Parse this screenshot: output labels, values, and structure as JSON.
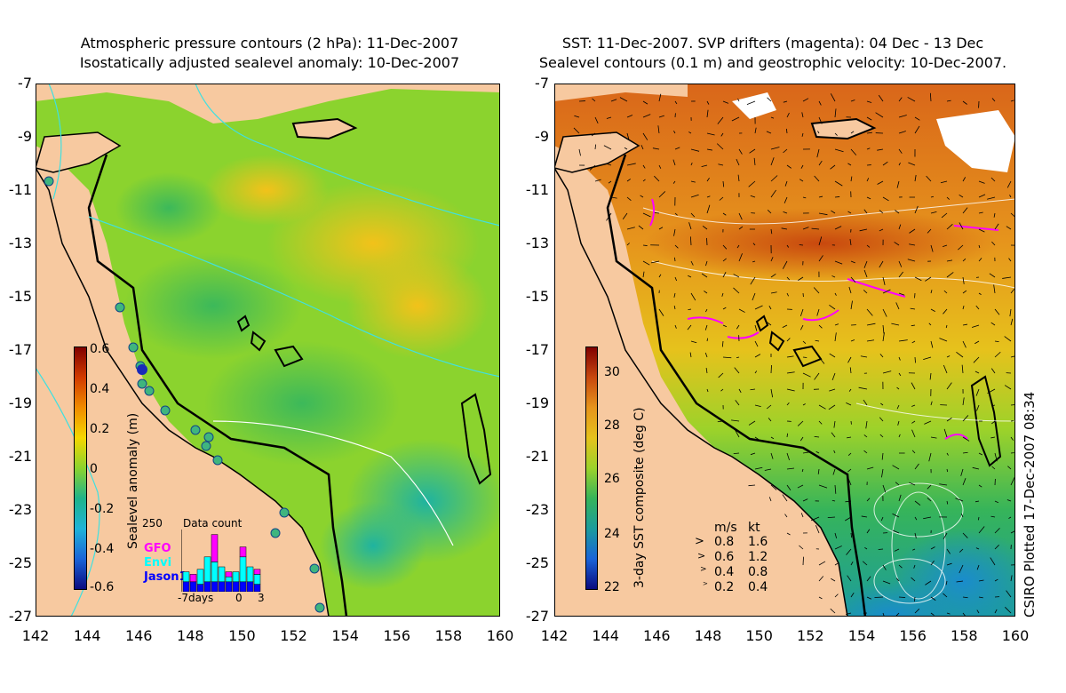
{
  "left_panel": {
    "title_line1": "Atmospheric pressure contours (2 hPa): 11-Dec-2007",
    "title_line2": "Isostatically adjusted sealevel anomaly: 10-Dec-2007",
    "colorbar": {
      "label": "Sealevel anomaly (m)",
      "ticks": [
        "0.6",
        "0.4",
        "0.2",
        "0",
        "-0.2",
        "-0.4",
        "-0.6"
      ],
      "range": [
        -0.6,
        0.6
      ]
    },
    "data_count": {
      "title": "Data count",
      "max_label": "250",
      "x_labels": [
        "-7days",
        "0",
        "3"
      ],
      "series": [
        {
          "name": "GFO",
          "color": "#ff00ff"
        },
        {
          "name": "Envi",
          "color": "#00ffff"
        },
        {
          "name": "Jason1",
          "color": "#0000ff"
        }
      ],
      "bars": [
        {
          "jason": 40,
          "envi": 40,
          "gfo": 0
        },
        {
          "jason": 40,
          "envi": 0,
          "gfo": 30
        },
        {
          "jason": 30,
          "envi": 60,
          "gfo": 0
        },
        {
          "jason": 40,
          "envi": 100,
          "gfo": 0
        },
        {
          "jason": 40,
          "envi": 80,
          "gfo": 110
        },
        {
          "jason": 40,
          "envi": 60,
          "gfo": 0
        },
        {
          "jason": 40,
          "envi": 20,
          "gfo": 20
        },
        {
          "jason": 40,
          "envi": 40,
          "gfo": 0
        },
        {
          "jason": 40,
          "envi": 100,
          "gfo": 40
        },
        {
          "jason": 40,
          "envi": 60,
          "gfo": 0
        },
        {
          "jason": 30,
          "envi": 40,
          "gfo": 20
        }
      ]
    }
  },
  "right_panel": {
    "title_line1": "SST: 11-Dec-2007. SVP drifters (magenta): 04 Dec - 13 Dec",
    "title_line2": "Sealevel contours (0.1 m) and geostrophic velocity: 10-Dec-2007.",
    "colorbar": {
      "label": "3-day SST composite (deg C)",
      "ticks": [
        "30",
        "28",
        "26",
        "24",
        "22"
      ],
      "range": [
        22,
        31
      ]
    },
    "velocity_legend": {
      "header_ms": "m/s",
      "header_kt": "kt",
      "rows": [
        {
          "ms": "0.8",
          "kt": "1.6"
        },
        {
          "ms": "0.6",
          "kt": "1.2"
        },
        {
          "ms": "0.4",
          "kt": "0.8"
        },
        {
          "ms": "0.2",
          "kt": "0.4"
        }
      ]
    },
    "credit": "CSIRO Plotted 17-Dec-2007 08:34"
  },
  "axes": {
    "lat_ticks": [
      "-7",
      "-9",
      "-11",
      "-13",
      "-15",
      "-17",
      "-19",
      "-21",
      "-23",
      "-25",
      "-27"
    ],
    "lon_ticks": [
      "142",
      "144",
      "146",
      "148",
      "150",
      "152",
      "154",
      "156",
      "158",
      "160"
    ],
    "lat_range": [
      -27,
      -7
    ],
    "lon_range": [
      142,
      160
    ]
  },
  "colors": {
    "land": "#f7c9a0",
    "pressure_contour": "#40e0e0",
    "coast": "#000000"
  }
}
